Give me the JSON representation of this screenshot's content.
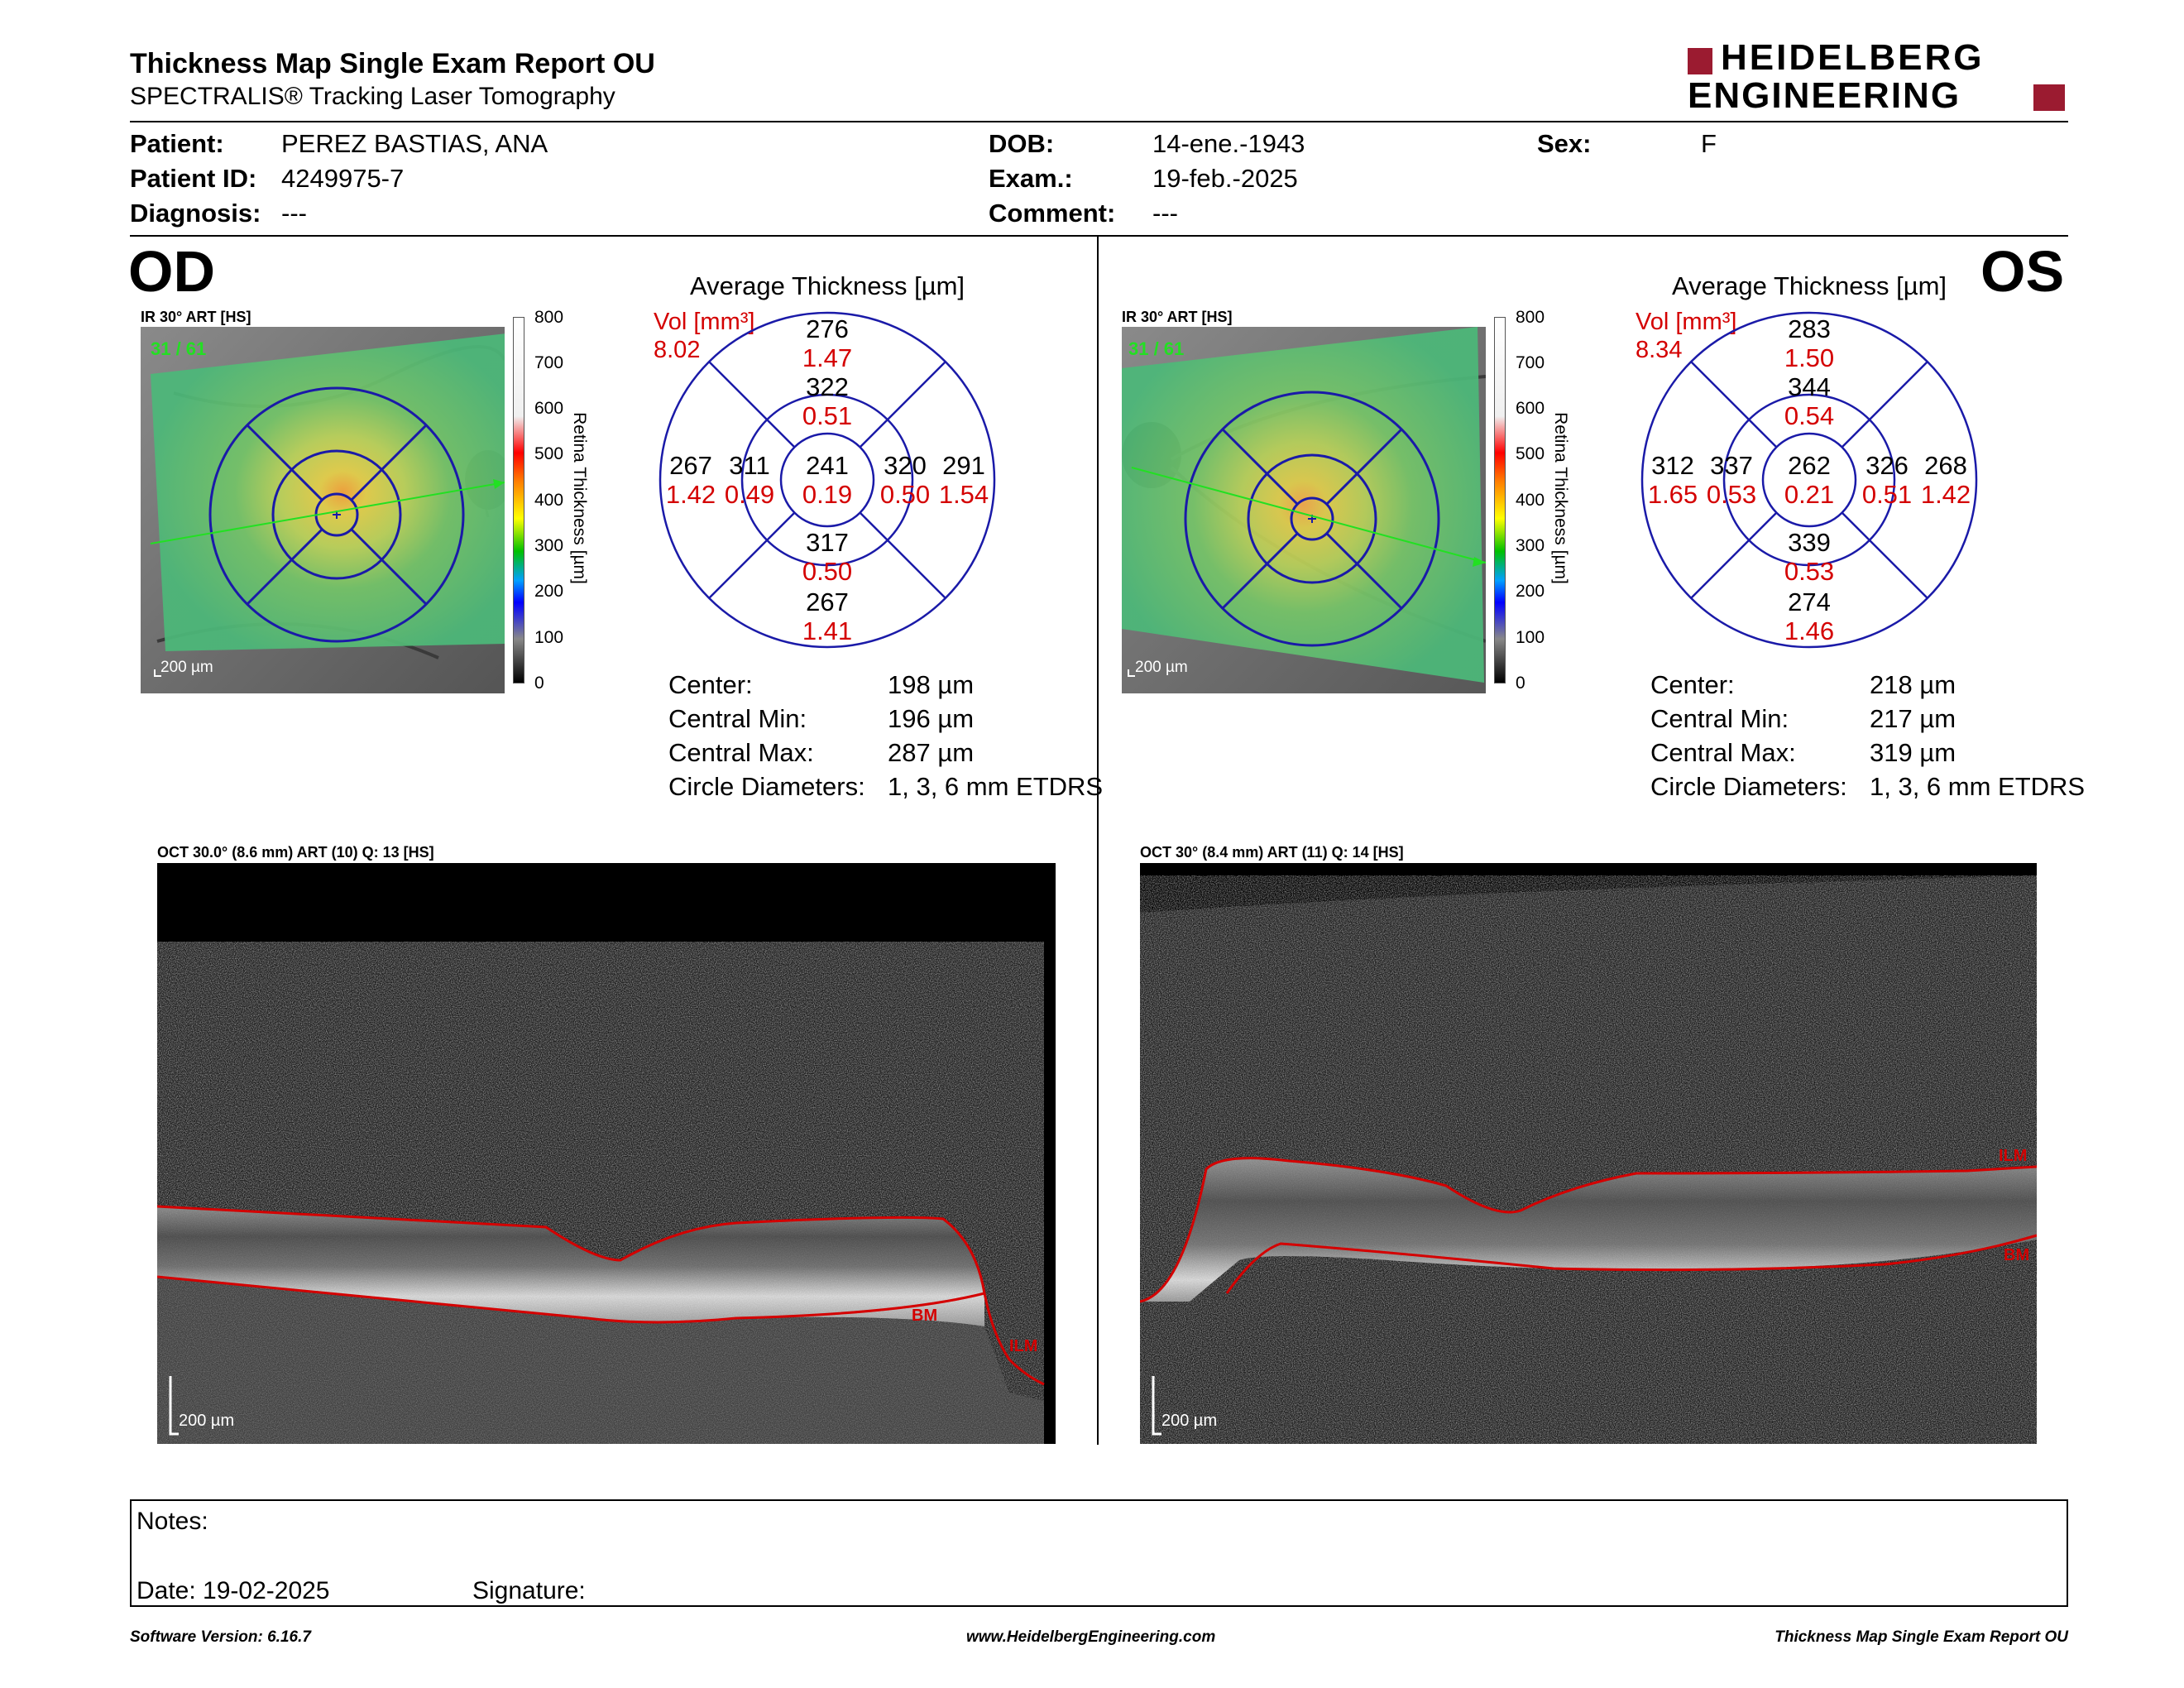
{
  "report": {
    "title": "Thickness Map Single Exam Report OU",
    "subtitle": "SPECTRALIS® Tracking Laser Tomography",
    "brand_line1": "HEIDELBERG",
    "brand_line2": "ENGINEERING"
  },
  "patient": {
    "patient_label": "Patient:",
    "patient_value": "PEREZ BASTIAS, ANA",
    "id_label": "Patient ID:",
    "id_value": "4249975-7",
    "diag_label": "Diagnosis:",
    "diag_value": "---",
    "dob_label": "DOB:",
    "dob_value": "14-ene.-1943",
    "exam_label": "Exam.:",
    "exam_value": "19-feb.-2025",
    "comment_label": "Comment:",
    "comment_value": "---",
    "sex_label": "Sex:",
    "sex_value": "F"
  },
  "scale": {
    "ticks": [
      "800",
      "700",
      "600",
      "500",
      "400",
      "300",
      "200",
      "100",
      "0"
    ],
    "label": "Retina  Thickness [µm]"
  },
  "od": {
    "eye": "OD",
    "ir_title": "IR 30° ART [HS]",
    "frame": "31 / 61",
    "scale_bar": "200 µm",
    "avg_title": "Average Thickness [µm]",
    "vol_label": "Vol [mm³]",
    "vol_value": "8.02",
    "sectors": {
      "center": {
        "t": "241",
        "v": "0.19"
      },
      "inner_sup": {
        "t": "322",
        "v": "0.51"
      },
      "inner_inf": {
        "t": "317",
        "v": "0.50"
      },
      "inner_left": {
        "t": "311",
        "v": "0.49"
      },
      "inner_right": {
        "t": "320",
        "v": "0.50"
      },
      "outer_sup": {
        "t": "276",
        "v": "1.47"
      },
      "outer_inf": {
        "t": "267",
        "v": "1.41"
      },
      "outer_left": {
        "t": "267",
        "v": "1.42"
      },
      "outer_right": {
        "t": "291",
        "v": "1.54"
      }
    },
    "stats": {
      "center_label": "Center:",
      "center_value": "198 µm",
      "min_label": "Central Min:",
      "min_value": "196 µm",
      "max_label": "Central Max:",
      "max_value": "287 µm",
      "diam_label": "Circle Diameters:",
      "diam_value": "1, 3, 6 mm ETDRS"
    },
    "oct_title": "OCT 30.0° (8.6 mm) ART (10) Q: 13 [HS]",
    "oct_scale": "200 µm",
    "ilm": "ILM",
    "bm": "BM"
  },
  "os": {
    "eye": "OS",
    "ir_title": "IR 30° ART [HS]",
    "frame": "31 / 61",
    "scale_bar": "200 µm",
    "avg_title": "Average Thickness [µm]",
    "vol_label": "Vol [mm³]",
    "vol_value": "8.34",
    "sectors": {
      "center": {
        "t": "262",
        "v": "0.21"
      },
      "inner_sup": {
        "t": "344",
        "v": "0.54"
      },
      "inner_inf": {
        "t": "339",
        "v": "0.53"
      },
      "inner_left": {
        "t": "337",
        "v": "0.53"
      },
      "inner_right": {
        "t": "326",
        "v": "0.51"
      },
      "outer_sup": {
        "t": "283",
        "v": "1.50"
      },
      "outer_inf": {
        "t": "274",
        "v": "1.46"
      },
      "outer_left": {
        "t": "312",
        "v": "1.65"
      },
      "outer_right": {
        "t": "268",
        "v": "1.42"
      }
    },
    "stats": {
      "center_label": "Center:",
      "center_value": "218 µm",
      "min_label": "Central Min:",
      "min_value": "217 µm",
      "max_label": "Central Max:",
      "max_value": "319 µm",
      "diam_label": "Circle Diameters:",
      "diam_value": "1, 3, 6 mm ETDRS"
    },
    "oct_title": "OCT 30° (8.4 mm) ART (11) Q: 14 [HS]",
    "oct_scale": "200 µm",
    "ilm": "ILM",
    "bm": "BM"
  },
  "notes": {
    "notes_label": "Notes:",
    "date_label": "Date: 19-02-2025",
    "signature_label": "Signature:"
  },
  "footer": {
    "software": "Software Version: 6.16.7",
    "website": "www.HeidelbergEngineering.com",
    "report_name": "Thickness Map Single Exam Report OU"
  },
  "colors": {
    "brand": "#9b1b30",
    "grid_blue": "#1a1aa8",
    "value_red": "#d40000",
    "map_green": "#52c07a"
  }
}
